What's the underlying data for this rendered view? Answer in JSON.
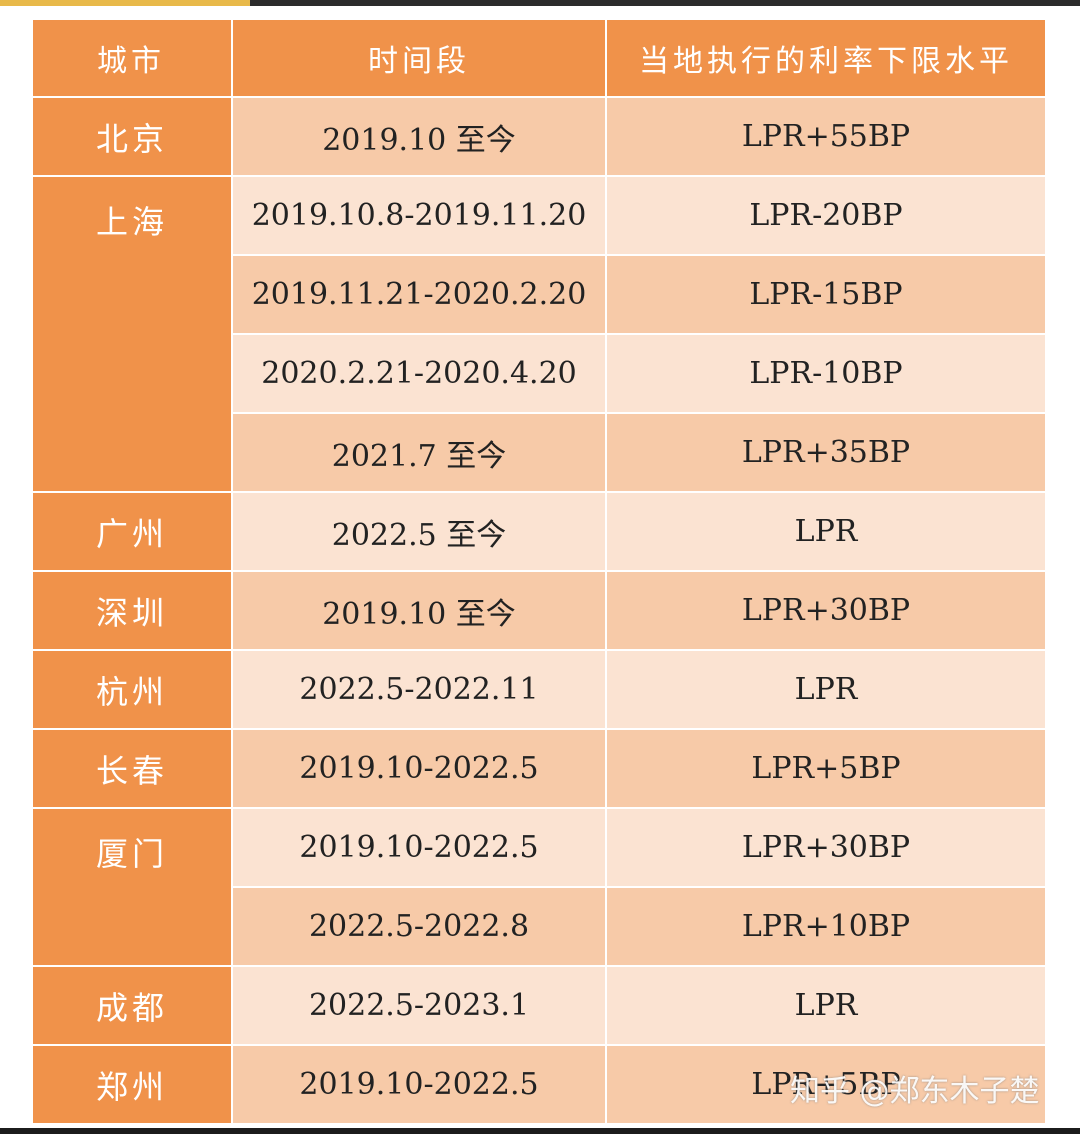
{
  "headers": [
    "城市",
    "时间段",
    "当地执行的利率下限水平"
  ],
  "rows": [
    {
      "city": "北京",
      "period": "2019.10 至今",
      "rate": "LPR+55BP"
    },
    {
      "city": "上海",
      "period": "2019.10.8-2019.11.20",
      "rate": "LPR-20BP"
    },
    {
      "city": "",
      "period": "2019.11.21-2020.2.20",
      "rate": "LPR-15BP"
    },
    {
      "city": "",
      "period": "2020.2.21-2020.4.20",
      "rate": "LPR-10BP"
    },
    {
      "city": "",
      "period": "2021.7 至今",
      "rate": "LPR+35BP"
    },
    {
      "city": "广州",
      "period": "2022.5 至今",
      "rate": "LPR"
    },
    {
      "city": "深圳",
      "period": "2019.10 至今",
      "rate": "LPR+30BP"
    },
    {
      "city": "杭州",
      "period": "2022.5-2022.11",
      "rate": "LPR"
    },
    {
      "city": "长春",
      "period": "2019.10-2022.5",
      "rate": "LPR+5BP"
    },
    {
      "city": "厦门",
      "period": "2019.10-2022.5",
      "rate": "LPR+30BP"
    },
    {
      "city": "",
      "period": "2022.5-2022.8",
      "rate": "LPR+10BP"
    },
    {
      "city": "成都",
      "period": "2022.5-2023.1",
      "rate": "LPR"
    },
    {
      "city": "郑州",
      "period": "2019.10-2022.5",
      "rate": "LPR+5BP"
    }
  ],
  "watermark": "知乎 @郑东木子楚",
  "colors": {
    "header_orange": "#f0924a",
    "row_dark": "#f7caa8",
    "row_light": "#fbe3d2",
    "text": "#222222"
  }
}
